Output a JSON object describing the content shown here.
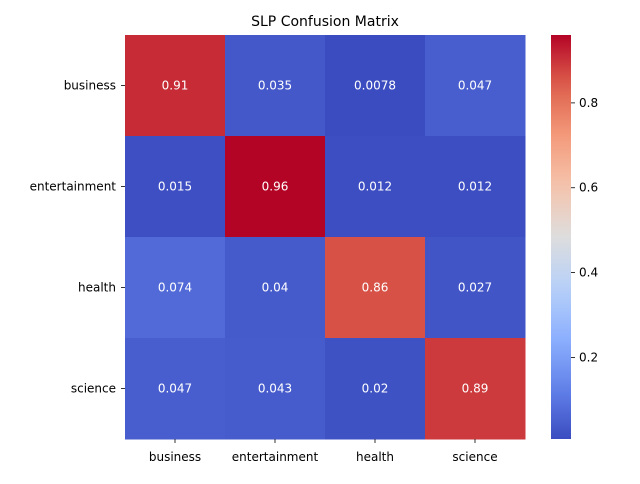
{
  "chart_data": {
    "type": "heatmap",
    "title": "SLP Confusion Matrix",
    "xlabel": "",
    "ylabel": "",
    "rows": [
      "business",
      "entertainment",
      "health",
      "science"
    ],
    "columns": [
      "business",
      "entertainment",
      "health",
      "science"
    ],
    "values": [
      [
        0.91,
        0.035,
        0.0078,
        0.047
      ],
      [
        0.015,
        0.96,
        0.012,
        0.012
      ],
      [
        0.074,
        0.04,
        0.86,
        0.027
      ],
      [
        0.047,
        0.043,
        0.02,
        0.89
      ]
    ],
    "cell_labels": [
      [
        "0.91",
        "0.035",
        "0.0078",
        "0.047"
      ],
      [
        "0.015",
        "0.96",
        "0.012",
        "0.012"
      ],
      [
        "0.074",
        "0.04",
        "0.86",
        "0.027"
      ],
      [
        "0.047",
        "0.043",
        "0.02",
        "0.89"
      ]
    ],
    "colormap": "coolwarm",
    "colorbar": {
      "range": [
        0.0078,
        0.96
      ],
      "ticks": [
        0.2,
        0.4,
        0.6,
        0.8
      ],
      "tick_labels": [
        "0.2",
        "0.4",
        "0.6",
        "0.8"
      ]
    },
    "annotation_color": "#ffffff",
    "grid": false
  }
}
